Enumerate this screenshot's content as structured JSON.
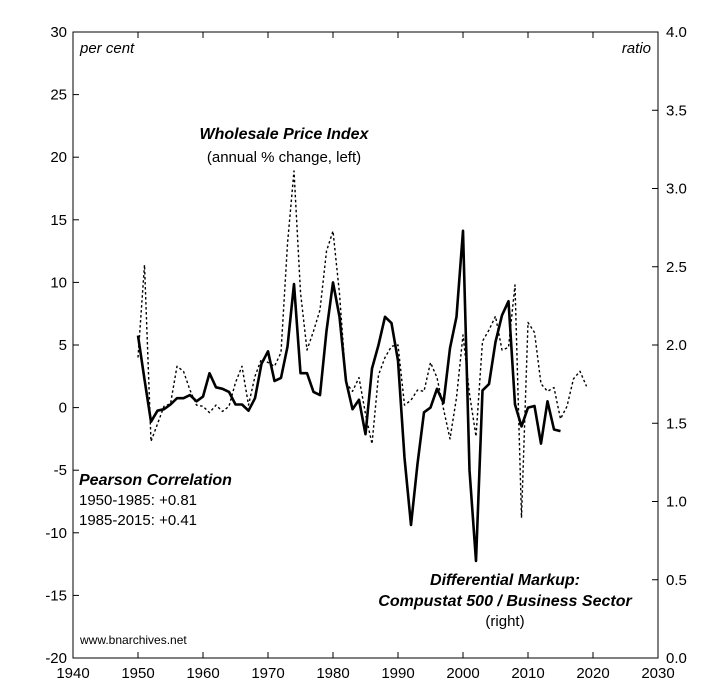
{
  "chart_data": {
    "type": "line",
    "x_axis": {
      "min": 1940,
      "max": 2030,
      "ticks": [
        1940,
        1950,
        1960,
        1970,
        1980,
        1990,
        2000,
        2010,
        2020,
        2030
      ]
    },
    "y_left": {
      "unit_label": "per cent",
      "min": -20,
      "max": 30,
      "ticks": [
        -20,
        -15,
        -10,
        -5,
        0,
        5,
        10,
        15,
        20,
        25,
        30
      ]
    },
    "y_right": {
      "unit_label": "ratio",
      "min": 0.0,
      "max": 4.0,
      "ticks": [
        "0.0",
        "0.5",
        "1.0",
        "1.5",
        "2.0",
        "2.5",
        "3.0",
        "3.5",
        "4.0"
      ]
    },
    "grid": false,
    "series": [
      {
        "name": "Wholesale Price Index",
        "subtitle": "(annual % change, left)",
        "axis": "left",
        "style": "dotted",
        "color": "#000000",
        "x": [
          1950,
          1951,
          1952,
          1953,
          1954,
          1955,
          1956,
          1957,
          1958,
          1959,
          1960,
          1961,
          1962,
          1963,
          1964,
          1965,
          1966,
          1967,
          1968,
          1969,
          1970,
          1971,
          1972,
          1973,
          1974,
          1975,
          1976,
          1977,
          1978,
          1979,
          1980,
          1981,
          1982,
          1983,
          1984,
          1985,
          1986,
          1987,
          1988,
          1989,
          1990,
          1991,
          1992,
          1993,
          1994,
          1995,
          1996,
          1997,
          1998,
          1999,
          2000,
          2001,
          2002,
          2003,
          2004,
          2005,
          2006,
          2007,
          2008,
          2009,
          2010,
          2011,
          2012,
          2013,
          2014,
          2015,
          2016,
          2017,
          2018,
          2019
        ],
        "y": [
          4.0,
          11.4,
          -2.7,
          -1.3,
          0.1,
          0.3,
          3.3,
          2.9,
          1.4,
          0.2,
          0.1,
          -0.4,
          0.2,
          -0.3,
          0.1,
          2.0,
          3.3,
          0.2,
          2.5,
          3.9,
          3.6,
          3.3,
          4.4,
          13.1,
          18.9,
          9.2,
          4.6,
          6.1,
          7.8,
          12.5,
          14.1,
          9.1,
          2.0,
          1.3,
          2.4,
          -0.5,
          -2.9,
          2.6,
          4.0,
          4.9,
          5.0,
          0.2,
          0.6,
          1.4,
          1.3,
          3.6,
          2.4,
          -0.1,
          -2.5,
          0.8,
          5.8,
          1.1,
          -2.3,
          5.3,
          6.2,
          7.3,
          4.6,
          4.8,
          9.8,
          -8.8,
          6.8,
          6.0,
          1.9,
          1.3,
          1.6,
          -0.9,
          0.1,
          2.3,
          2.9,
          1.7
        ]
      },
      {
        "name": "Differential Markup:",
        "name_line2": "Compustat 500 / Business Sector",
        "subtitle": "(right)",
        "axis": "right",
        "style": "solid",
        "color": "#000000",
        "x": [
          1950,
          1951,
          1952,
          1953,
          1954,
          1955,
          1956,
          1957,
          1958,
          1959,
          1960,
          1961,
          1962,
          1963,
          1964,
          1965,
          1966,
          1967,
          1968,
          1969,
          1970,
          1971,
          1972,
          1973,
          1974,
          1975,
          1976,
          1977,
          1978,
          1979,
          1980,
          1981,
          1982,
          1983,
          1984,
          1985,
          1986,
          1987,
          1988,
          1989,
          1990,
          1991,
          1992,
          1993,
          1994,
          1995,
          1996,
          1997,
          1998,
          1999,
          2000,
          2001,
          2002,
          2003,
          2004,
          2005,
          2006,
          2007,
          2008,
          2009,
          2010,
          2011,
          2012,
          2013,
          2014,
          2015
        ],
        "y": [
          2.06,
          1.78,
          1.51,
          1.58,
          1.59,
          1.62,
          1.66,
          1.66,
          1.68,
          1.64,
          1.67,
          1.82,
          1.73,
          1.72,
          1.7,
          1.62,
          1.62,
          1.58,
          1.66,
          1.88,
          1.96,
          1.77,
          1.79,
          1.99,
          2.39,
          1.82,
          1.82,
          1.7,
          1.68,
          2.09,
          2.4,
          2.18,
          1.77,
          1.59,
          1.65,
          1.43,
          1.85,
          2.0,
          2.18,
          2.14,
          1.9,
          1.28,
          0.85,
          1.24,
          1.57,
          1.6,
          1.72,
          1.63,
          1.98,
          2.18,
          2.73,
          1.2,
          0.62,
          1.71,
          1.75,
          2.02,
          2.19,
          2.28,
          1.62,
          1.48,
          1.6,
          1.61,
          1.37,
          1.64,
          1.46,
          1.45
        ]
      }
    ],
    "annotations": [
      {
        "title": "Pearson Correlation",
        "lines": [
          "1950-1985: +0.81",
          "1985-2015: +0.41"
        ]
      }
    ],
    "source": "www.bnarchives.net"
  }
}
